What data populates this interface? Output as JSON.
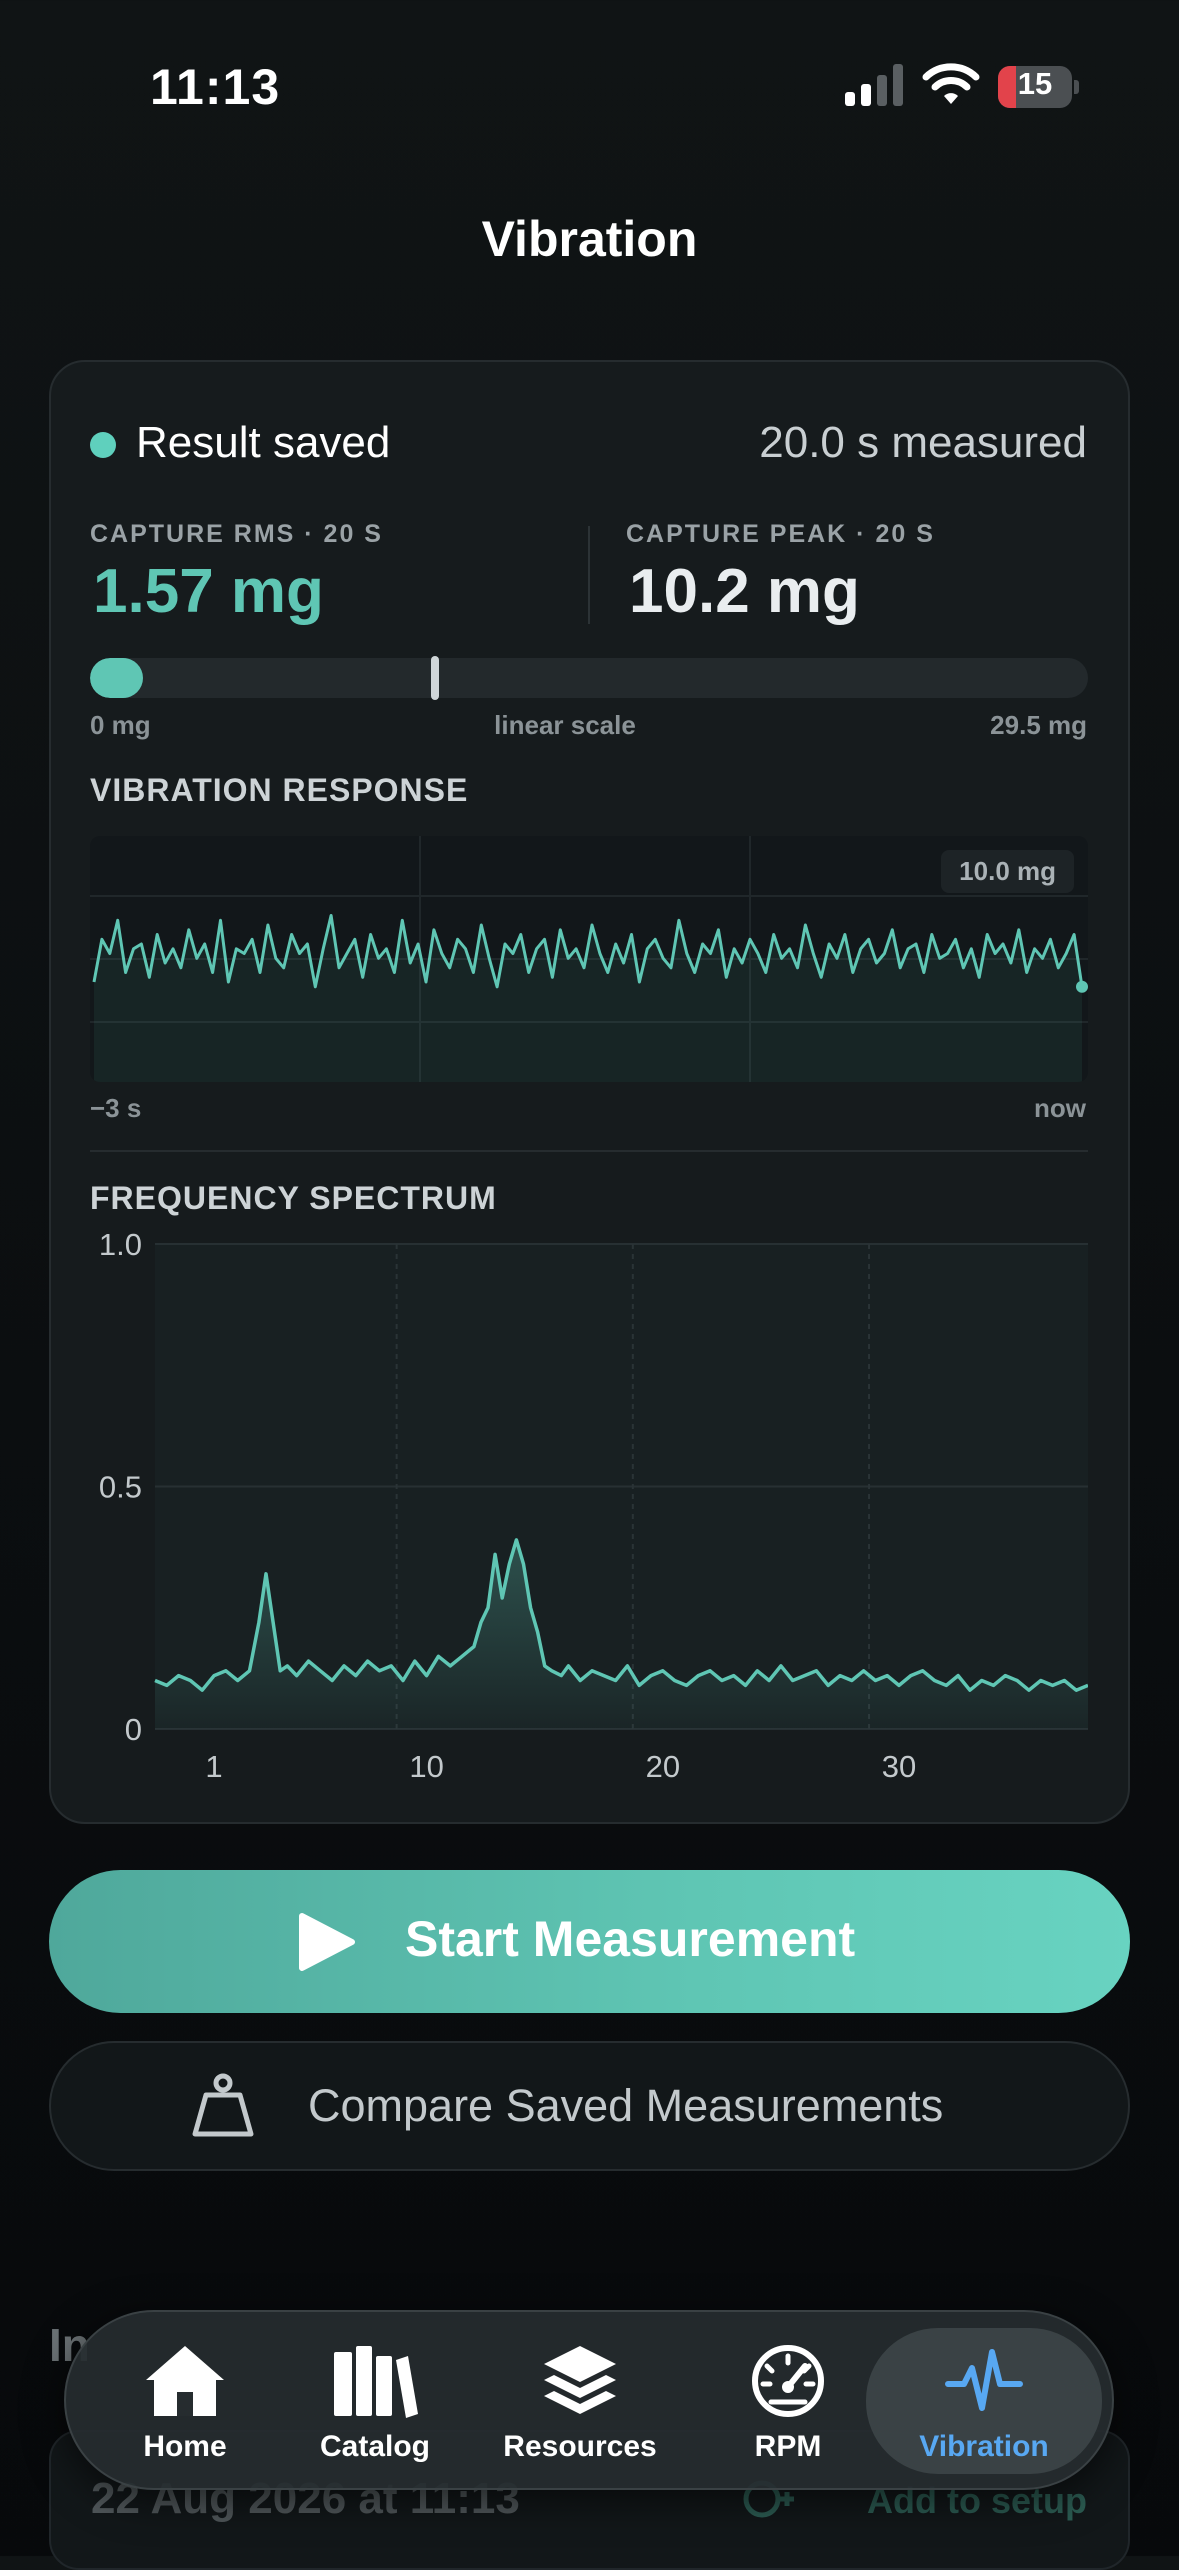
{
  "status_bar": {
    "time": "11:13",
    "battery": "15",
    "battery_color": "#e2434b"
  },
  "header": {
    "title": "Vibration"
  },
  "result": {
    "status": "Result saved",
    "status_color": "#5fd0bd",
    "duration": "20.0 s measured",
    "rms_label": "CAPTURE RMS · 20 S",
    "rms_value": "1.57 mg",
    "peak_label": "CAPTURE PEAK · 20 S",
    "peak_value": "10.2 mg",
    "scale_min": "0 mg",
    "scale_mode": "linear scale",
    "scale_max": "29.5 mg",
    "rms_fraction": 0.053,
    "peak_fraction": 0.346
  },
  "vibration_response": {
    "title": "VIBRATION RESPONSE",
    "peak_badge": "10.0 mg",
    "start_label": "−3 s",
    "end_label": "now"
  },
  "frequency_spectrum": {
    "title": "FREQUENCY SPECTRUM",
    "y_ticks": [
      "1.0",
      "0.5",
      "0"
    ],
    "x_ticks": [
      "1",
      "10",
      "20",
      "30"
    ]
  },
  "actions": {
    "start_label": "Start Measurement",
    "compare_label": "Compare Saved Measurements"
  },
  "history": {
    "title": "In",
    "items": [
      {
        "date": "22 Aug 2026 at 11:13",
        "action": "Add to setup"
      }
    ]
  },
  "tabs": [
    {
      "label": "Home",
      "icon": "house-icon"
    },
    {
      "label": "Catalog",
      "icon": "books-icon"
    },
    {
      "label": "Resources",
      "icon": "layers-icon"
    },
    {
      "label": "RPM",
      "icon": "gauge-icon"
    },
    {
      "label": "Vibration",
      "icon": "waveform-icon",
      "active": true
    }
  ],
  "colors": {
    "accent": "#5fc6b4",
    "tab_active": "#58a8f2",
    "background": "#0b0e10"
  },
  "chart_data": [
    {
      "type": "line",
      "title": "VIBRATION RESPONSE",
      "xlabel": "",
      "ylabel": "",
      "x_range": [
        "−3 s",
        "now"
      ],
      "annotations": [
        "10.0 mg"
      ],
      "grid": true,
      "series": [
        {
          "values": [
            0.2,
            0.65,
            0.5,
            0.85,
            0.3,
            0.55,
            0.6,
            0.25,
            0.7,
            0.4,
            0.55,
            0.35,
            0.75,
            0.45,
            0.6,
            0.3,
            0.85,
            0.2,
            0.55,
            0.5,
            0.65,
            0.3,
            0.8,
            0.45,
            0.35,
            0.7,
            0.5,
            0.6,
            0.15,
            0.55,
            0.9,
            0.35,
            0.5,
            0.65,
            0.25,
            0.7,
            0.45,
            0.55,
            0.3,
            0.85,
            0.4,
            0.6,
            0.2,
            0.75,
            0.5,
            0.35,
            0.65,
            0.55,
            0.3,
            0.8,
            0.45,
            0.15,
            0.6,
            0.5,
            0.7,
            0.3,
            0.55,
            0.65,
            0.25,
            0.75,
            0.45,
            0.55,
            0.35,
            0.8,
            0.5,
            0.3,
            0.6,
            0.4,
            0.7,
            0.2,
            0.55,
            0.65,
            0.45,
            0.35,
            0.85,
            0.5,
            0.3,
            0.6,
            0.5,
            0.75,
            0.25,
            0.55,
            0.4,
            0.65,
            0.5,
            0.3,
            0.7,
            0.45,
            0.55,
            0.35,
            0.8,
            0.5,
            0.25,
            0.6,
            0.45,
            0.7,
            0.3,
            0.55,
            0.65,
            0.4,
            0.5,
            0.75,
            0.35,
            0.55,
            0.6,
            0.3,
            0.7,
            0.45,
            0.5,
            0.65,
            0.35,
            0.55,
            0.25,
            0.7,
            0.5,
            0.6,
            0.4,
            0.75,
            0.3,
            0.55,
            0.45,
            0.65,
            0.35,
            0.5,
            0.7,
            0.15
          ]
        }
      ]
    },
    {
      "type": "area",
      "title": "FREQUENCY SPECTRUM",
      "xlabel": "",
      "ylabel": "",
      "x_ticks": [
        1,
        10,
        20,
        30
      ],
      "xlim": [
        -1.5,
        38
      ],
      "ylim": [
        0,
        1.0
      ],
      "y_ticks": [
        0,
        0.5,
        1.0
      ],
      "grid": true,
      "series": [
        {
          "x": [
            -1.5,
            -1,
            -0.5,
            0,
            0.5,
            1,
            1.5,
            2,
            2.5,
            2.9,
            3.2,
            3.5,
            3.8,
            4.1,
            4.5,
            5,
            5.5,
            6,
            6.5,
            7,
            7.5,
            8,
            8.5,
            9,
            9.5,
            10,
            10.5,
            11,
            11.5,
            12,
            12.3,
            12.6,
            12.9,
            13.2,
            13.5,
            13.8,
            14.1,
            14.4,
            14.7,
            15,
            15.3,
            15.7,
            16,
            16.5,
            17,
            17.5,
            18,
            18.5,
            19,
            19.5,
            20,
            20.5,
            21,
            21.5,
            22,
            22.5,
            23,
            23.5,
            24,
            24.5,
            25,
            25.5,
            26,
            26.5,
            27,
            27.5,
            28,
            28.5,
            29,
            29.5,
            30,
            30.5,
            31,
            31.5,
            32,
            32.5,
            33,
            33.5,
            34,
            34.5,
            35,
            35.5,
            36,
            36.5,
            37,
            37.5,
            38
          ],
          "values": [
            0.1,
            0.09,
            0.11,
            0.1,
            0.08,
            0.11,
            0.12,
            0.1,
            0.12,
            0.22,
            0.32,
            0.22,
            0.12,
            0.13,
            0.11,
            0.14,
            0.12,
            0.1,
            0.13,
            0.11,
            0.14,
            0.12,
            0.13,
            0.1,
            0.14,
            0.11,
            0.15,
            0.13,
            0.15,
            0.17,
            0.22,
            0.25,
            0.36,
            0.27,
            0.34,
            0.39,
            0.34,
            0.25,
            0.2,
            0.13,
            0.12,
            0.11,
            0.13,
            0.1,
            0.12,
            0.11,
            0.1,
            0.13,
            0.09,
            0.11,
            0.12,
            0.1,
            0.09,
            0.11,
            0.12,
            0.1,
            0.11,
            0.09,
            0.12,
            0.1,
            0.13,
            0.1,
            0.11,
            0.12,
            0.09,
            0.11,
            0.1,
            0.12,
            0.1,
            0.11,
            0.09,
            0.11,
            0.12,
            0.1,
            0.09,
            0.11,
            0.08,
            0.1,
            0.09,
            0.11,
            0.1,
            0.08,
            0.1,
            0.09,
            0.1,
            0.08,
            0.09
          ]
        }
      ]
    }
  ]
}
